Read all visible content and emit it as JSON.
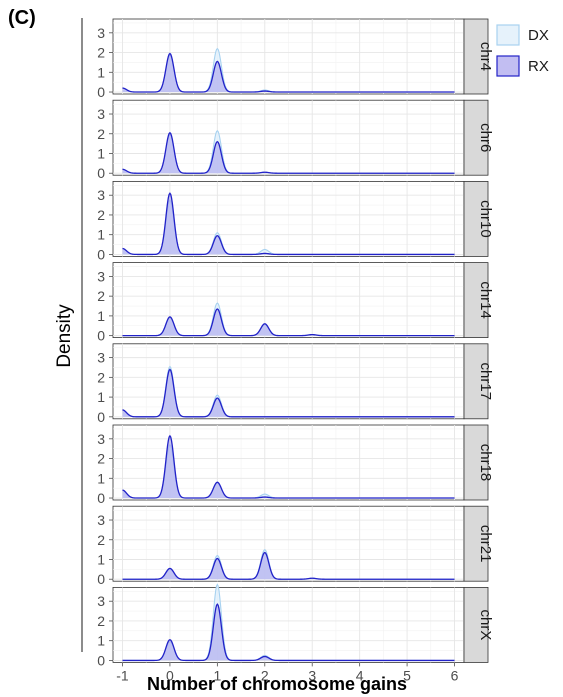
{
  "figure_label": "(C)",
  "chart_data": {
    "type": "area",
    "xlabel": "Number of chromosome gains",
    "ylabel": "Density",
    "xlim": [
      -1.2,
      6.2
    ],
    "ylim": [
      -0.1,
      3.7
    ],
    "x_ticks": [
      -1,
      0,
      1,
      2,
      3,
      4,
      5,
      6
    ],
    "y_ticks": [
      0,
      1,
      2,
      3
    ],
    "grid": true,
    "legend_position": "right",
    "series": [
      {
        "name": "DX",
        "fill": "#e3f1fb",
        "line": "#a8d2f0"
      },
      {
        "name": "RX",
        "fill": "#a8a3ec",
        "line": "#2222c8"
      }
    ],
    "panels": [
      {
        "label": "chr4",
        "peaks": [
          {
            "x": -1,
            "DX": 0.2,
            "RX": 0.2
          },
          {
            "x": 0,
            "DX": 1.85,
            "RX": 1.95
          },
          {
            "x": 1,
            "DX": 2.2,
            "RX": 1.55
          },
          {
            "x": 2,
            "DX": 0.1,
            "RX": 0.05
          }
        ]
      },
      {
        "label": "chr6",
        "peaks": [
          {
            "x": -1,
            "DX": 0.2,
            "RX": 0.2
          },
          {
            "x": 0,
            "DX": 1.95,
            "RX": 2.05
          },
          {
            "x": 1,
            "DX": 2.15,
            "RX": 1.6
          },
          {
            "x": 2,
            "DX": 0.05,
            "RX": 0.05
          }
        ]
      },
      {
        "label": "chr10",
        "peaks": [
          {
            "x": -1,
            "DX": 0.3,
            "RX": 0.3
          },
          {
            "x": 0,
            "DX": 2.75,
            "RX": 3.1
          },
          {
            "x": 1,
            "DX": 1.1,
            "RX": 0.95
          },
          {
            "x": 2,
            "DX": 0.25,
            "RX": 0.05
          }
        ]
      },
      {
        "label": "chr14",
        "peaks": [
          {
            "x": 0,
            "DX": 0.9,
            "RX": 0.95
          },
          {
            "x": 1,
            "DX": 1.65,
            "RX": 1.35
          },
          {
            "x": 2,
            "DX": 0.55,
            "RX": 0.6
          },
          {
            "x": 3,
            "DX": 0.05,
            "RX": 0.05
          }
        ]
      },
      {
        "label": "chr17",
        "peaks": [
          {
            "x": -1,
            "DX": 0.35,
            "RX": 0.35
          },
          {
            "x": 0,
            "DX": 2.55,
            "RX": 2.4
          },
          {
            "x": 1,
            "DX": 1.1,
            "RX": 0.95
          }
        ]
      },
      {
        "label": "chr18",
        "peaks": [
          {
            "x": -1,
            "DX": 0.4,
            "RX": 0.4
          },
          {
            "x": 0,
            "DX": 2.7,
            "RX": 3.15
          },
          {
            "x": 1,
            "DX": 0.75,
            "RX": 0.8
          },
          {
            "x": 2,
            "DX": 0.2,
            "RX": 0.05
          }
        ]
      },
      {
        "label": "chr21",
        "peaks": [
          {
            "x": 0,
            "DX": 0.5,
            "RX": 0.55
          },
          {
            "x": 1,
            "DX": 1.2,
            "RX": 1.05
          },
          {
            "x": 2,
            "DX": 1.5,
            "RX": 1.35
          },
          {
            "x": 3,
            "DX": 0.05,
            "RX": 0.05
          }
        ]
      },
      {
        "label": "chrX",
        "peaks": [
          {
            "x": 0,
            "DX": 0.95,
            "RX": 1.05
          },
          {
            "x": 1,
            "DX": 3.85,
            "RX": 2.85
          },
          {
            "x": 2,
            "DX": 0.25,
            "RX": 0.2
          }
        ]
      }
    ]
  }
}
